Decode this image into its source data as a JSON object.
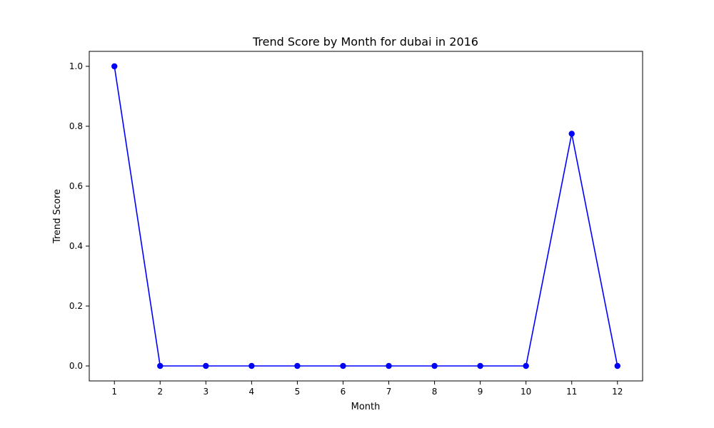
{
  "chart_data": {
    "type": "line",
    "title": "Trend Score by Month for dubai in 2016",
    "xlabel": "Month",
    "ylabel": "Trend Score",
    "x": [
      1,
      2,
      3,
      4,
      5,
      6,
      7,
      8,
      9,
      10,
      11,
      12
    ],
    "x_ticks": [
      "1",
      "2",
      "3",
      "4",
      "5",
      "6",
      "7",
      "8",
      "9",
      "10",
      "11",
      "12"
    ],
    "y_ticks": [
      "0.0",
      "0.2",
      "0.4",
      "0.6",
      "0.8",
      "1.0"
    ],
    "xlim": [
      0.45,
      12.55
    ],
    "ylim": [
      -0.05,
      1.05
    ],
    "grid": false,
    "series": [
      {
        "color": "#0000ff",
        "marker": "circle",
        "values": [
          1.0,
          0.0,
          0.0,
          0.0,
          0.0,
          0.0,
          0.0,
          0.0,
          0.0,
          0.0,
          0.775,
          0.0
        ]
      }
    ]
  }
}
